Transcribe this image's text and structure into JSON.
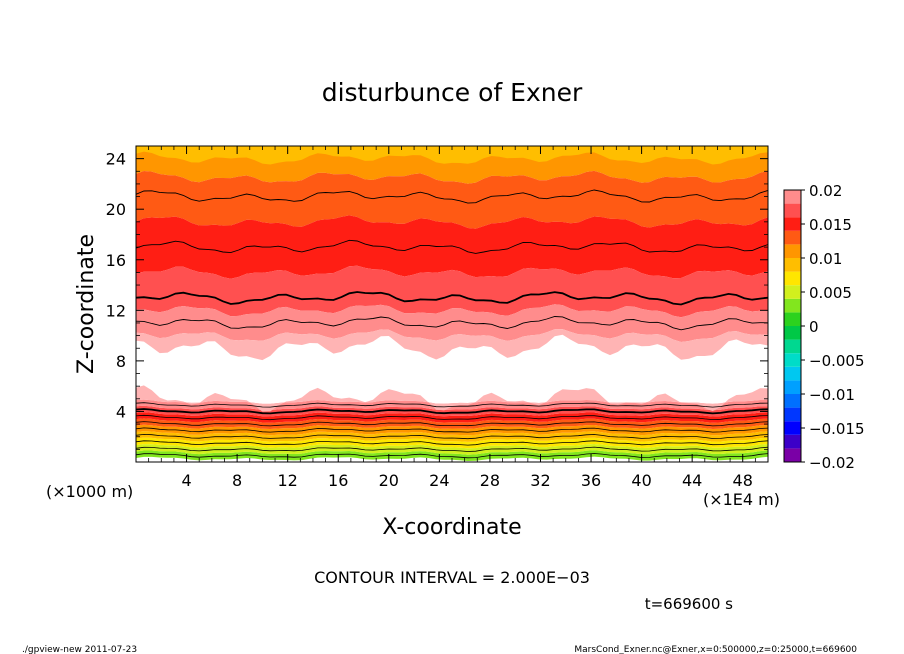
{
  "chart_data": {
    "type": "heatmap",
    "title": "disturbunce of Exner",
    "xlabel": "X-coordinate",
    "ylabel": "Z-coordinate",
    "x_scale_note": "(×1E4 m)",
    "y_scale_note": "(×1000 m)",
    "xlim": [
      0,
      50
    ],
    "ylim": [
      0,
      25
    ],
    "x_ticks": [
      4,
      8,
      12,
      16,
      20,
      24,
      28,
      32,
      36,
      40,
      44,
      48
    ],
    "y_ticks": [
      4,
      8,
      12,
      16,
      20,
      24
    ],
    "colorbar": {
      "min": -0.02,
      "max": 0.02,
      "tick_labels": [
        "0.02",
        "0.015",
        "0.01",
        "0.005",
        "0",
        "−0.005",
        "−0.01",
        "−0.015",
        "−0.02"
      ],
      "tick_values": [
        0.02,
        0.015,
        0.01,
        0.005,
        0,
        -0.005,
        -0.01,
        -0.015,
        -0.02
      ],
      "bands": [
        {
          "from": -0.02,
          "to": -0.018,
          "color": "#7a00a6"
        },
        {
          "from": -0.018,
          "to": -0.016,
          "color": "#3c00c8"
        },
        {
          "from": -0.016,
          "to": -0.014,
          "color": "#0000ff"
        },
        {
          "from": -0.014,
          "to": -0.012,
          "color": "#0037ff"
        },
        {
          "from": -0.012,
          "to": -0.01,
          "color": "#0070ff"
        },
        {
          "from": -0.01,
          "to": -0.008,
          "color": "#00a0ff"
        },
        {
          "from": -0.008,
          "to": -0.006,
          "color": "#00c8f0"
        },
        {
          "from": -0.006,
          "to": -0.004,
          "color": "#00dcc8"
        },
        {
          "from": -0.004,
          "to": -0.002,
          "color": "#00d890"
        },
        {
          "from": -0.002,
          "to": 0.0,
          "color": "#00c846"
        },
        {
          "from": 0.0,
          "to": 0.002,
          "color": "#2cd21e"
        },
        {
          "from": 0.002,
          "to": 0.004,
          "color": "#82e61e"
        },
        {
          "from": 0.004,
          "to": 0.006,
          "color": "#d2f01e"
        },
        {
          "from": 0.006,
          "to": 0.008,
          "color": "#ffe600"
        },
        {
          "from": 0.008,
          "to": 0.01,
          "color": "#ffbe00"
        },
        {
          "from": 0.01,
          "to": 0.012,
          "color": "#ff9600"
        },
        {
          "from": 0.012,
          "to": 0.014,
          "color": "#ff5a14"
        },
        {
          "from": 0.014,
          "to": 0.016,
          "color": "#ff1e14"
        },
        {
          "from": 0.016,
          "to": 0.018,
          "color": "#ff5050"
        },
        {
          "from": 0.018,
          "to": 0.02,
          "color": "#ff8c8c"
        },
        {
          "from": 0.02,
          "to": 0.022,
          "color": "#ffb4b4"
        }
      ]
    },
    "field_profile": {
      "description_z": [
        0.0,
        0.5,
        1.0,
        1.5,
        2.0,
        2.5,
        3.0,
        3.5,
        4.0,
        4.5,
        5.0,
        9.0,
        11.0,
        13.0,
        15.0,
        17.0,
        19.0,
        21.0,
        22.5,
        24.0,
        25.0
      ],
      "value": [
        0.001,
        0.003,
        0.005,
        0.007,
        0.009,
        0.011,
        0.013,
        0.015,
        0.017,
        0.019,
        0.021,
        0.021,
        0.019,
        0.017,
        0.016,
        0.015,
        0.014,
        0.013,
        0.012,
        0.011,
        0.009
      ]
    },
    "contour_interval_text": "CONTOUR INTERVAL = 2.000E−03",
    "time_text": "t=669600 s"
  },
  "footer": {
    "left": "./gpview-new   2011-07-23",
    "right": "MarsCond_Exner.nc@Exner,x=0:500000,z=0:25000,t=669600"
  }
}
